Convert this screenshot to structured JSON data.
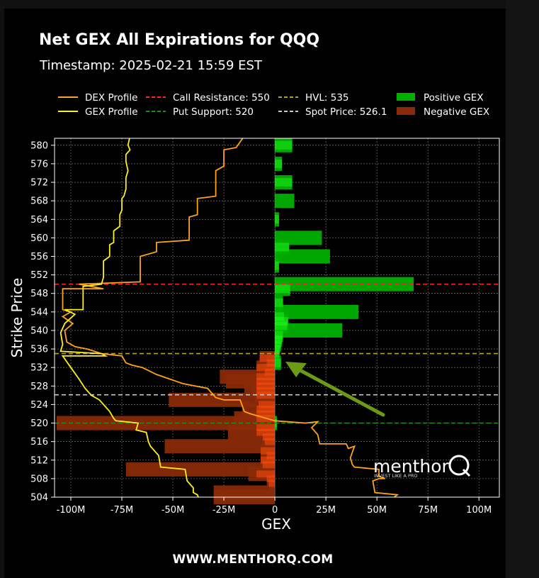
{
  "header": {
    "title": "Net GEX All Expirations for QQQ",
    "subtitle": "Timestamp: 2025-02-21 15:59 EST"
  },
  "footer": {
    "url": "WWW.MENTHORQ.COM"
  },
  "watermark": {
    "brand": "menthor",
    "tagline": "INVEST LIKE A PRO"
  },
  "colors": {
    "background": "#000000",
    "dex": "#ffa31a",
    "gex": "#ffee22",
    "positive": "#00b000",
    "negative": "#8a2a06",
    "call_resistance": "#ff2222",
    "put_support": "#1c8a1c",
    "hvl": "#b8a030",
    "spot": "#c8c8c8",
    "arrow": "#6b9a17"
  },
  "chart_data": {
    "type": "bar",
    "orientation": "horizontal",
    "xlabel": "GEX",
    "ylabel": "Strike Price",
    "xlim": [
      -108000000,
      110000000
    ],
    "ylim": [
      504,
      581.5
    ],
    "xticks": [
      -100000000,
      -75000000,
      -50000000,
      -25000000,
      0,
      25000000,
      50000000,
      75000000,
      100000000
    ],
    "xtick_labels": [
      "-100M",
      "-75M",
      "-50M",
      "-25M",
      "0",
      "25M",
      "50M",
      "75M",
      "100M"
    ],
    "yticks": [
      504,
      508,
      512,
      516,
      520,
      524,
      528,
      532,
      536,
      540,
      544,
      548,
      552,
      556,
      560,
      564,
      568,
      572,
      576,
      580
    ],
    "grid": true,
    "legend": {
      "position": "top",
      "entries": [
        {
          "label": "DEX Profile",
          "style": "line",
          "color": "#ffa31a"
        },
        {
          "label": "GEX Profile",
          "style": "line",
          "color": "#ffee22"
        },
        {
          "label": "Call Resistance: 550",
          "style": "dashed",
          "color": "#ff2222"
        },
        {
          "label": "Put Support: 520",
          "style": "dashed",
          "color": "#1c8a1c"
        },
        {
          "label": "HVL: 535",
          "style": "dashed",
          "color": "#b8a030"
        },
        {
          "label": "Spot Price: 526.1",
          "style": "dashed",
          "color": "#c8c8c8"
        },
        {
          "label": "Positive GEX",
          "style": "patch",
          "color": "#00b000"
        },
        {
          "label": "Negative GEX",
          "style": "patch",
          "color": "#8a2a06"
        }
      ]
    },
    "levels": {
      "call_resistance": 550,
      "put_support": 520,
      "hvl": 535,
      "spot": 526.1
    },
    "positive_gex": [
      {
        "strike": 580,
        "value": 8500000
      },
      {
        "strike": 576,
        "value": 3500000
      },
      {
        "strike": 572,
        "value": 8500000
      },
      {
        "strike": 568,
        "value": 9500000
      },
      {
        "strike": 564,
        "value": 2000000
      },
      {
        "strike": 560,
        "value": 23000000
      },
      {
        "strike": 558,
        "value": 7000000
      },
      {
        "strike": 556,
        "value": 27000000
      },
      {
        "strike": 554,
        "value": 2000000
      },
      {
        "strike": 550,
        "value": 68000000
      },
      {
        "strike": 549,
        "value": 7500000
      },
      {
        "strike": 546,
        "value": 4000000
      },
      {
        "strike": 544,
        "value": 41000000
      },
      {
        "strike": 543,
        "value": 4500000
      },
      {
        "strike": 542,
        "value": 6500000
      },
      {
        "strike": 541,
        "value": 6000000
      },
      {
        "strike": 540,
        "value": 33000000
      },
      {
        "strike": 539,
        "value": 4000000
      },
      {
        "strike": 538,
        "value": 3500000
      },
      {
        "strike": 537,
        "value": 3000000
      },
      {
        "strike": 536,
        "value": 2500000
      },
      {
        "strike": 535,
        "value": 2000000
      },
      {
        "strike": 533,
        "value": 3000000
      },
      {
        "strike": 520,
        "value": 1000000
      }
    ],
    "negative_gex": [
      {
        "strike": 534,
        "value": -7500000
      },
      {
        "strike": 533,
        "value": -4000000
      },
      {
        "strike": 532,
        "value": -9000000
      },
      {
        "strike": 531,
        "value": -5000000
      },
      {
        "strike": 530,
        "value": -27000000
      },
      {
        "strike": 529,
        "value": -24000000
      },
      {
        "strike": 528,
        "value": -15000000
      },
      {
        "strike": 527,
        "value": -12000000
      },
      {
        "strike": 526,
        "value": -10000000
      },
      {
        "strike": 525,
        "value": -52000000
      },
      {
        "strike": 524,
        "value": -8000000
      },
      {
        "strike": 523,
        "value": -16000000
      },
      {
        "strike": 522,
        "value": -9000000
      },
      {
        "strike": 521,
        "value": -20000000
      },
      {
        "strike": 520,
        "value": -107000000
      },
      {
        "strike": 519,
        "value": -9000000
      },
      {
        "strike": 518,
        "value": -23000000
      },
      {
        "strike": 517,
        "value": -6000000
      },
      {
        "strike": 516,
        "value": -5000000
      },
      {
        "strike": 515,
        "value": -54000000
      },
      {
        "strike": 514,
        "value": -7000000
      },
      {
        "strike": 513,
        "value": -4000000
      },
      {
        "strike": 512,
        "value": -7000000
      },
      {
        "strike": 511,
        "value": -6000000
      },
      {
        "strike": 510,
        "value": -73000000
      },
      {
        "strike": 509,
        "value": -13000000
      },
      {
        "strike": 508,
        "value": -4000000
      },
      {
        "strike": 507,
        "value": -3000000
      },
      {
        "strike": 505,
        "value": -30000000
      },
      {
        "strike": 504,
        "value": -30000000
      }
    ],
    "dex_profile": [
      [
        -15000000,
        582
      ],
      [
        -19000000,
        579.5
      ],
      [
        -25000000,
        579
      ],
      [
        -25000000,
        575.5
      ],
      [
        -29000000,
        574.5
      ],
      [
        -29000000,
        569
      ],
      [
        -38000000,
        568.5
      ],
      [
        -38000000,
        565
      ],
      [
        -42000000,
        564.5
      ],
      [
        -42000000,
        559.5
      ],
      [
        -58000000,
        559
      ],
      [
        -58000000,
        557
      ],
      [
        -66000000,
        556
      ],
      [
        -66000000,
        550.5
      ],
      [
        -96000000,
        550
      ],
      [
        -84000000,
        549
      ],
      [
        -104000000,
        549
      ],
      [
        -104000000,
        544.5
      ],
      [
        -100000000,
        544
      ],
      [
        -104000000,
        543
      ],
      [
        -99000000,
        541.5
      ],
      [
        -103000000,
        540
      ],
      [
        -102000000,
        537.5
      ],
      [
        -98000000,
        536.5
      ],
      [
        -92000000,
        536
      ],
      [
        -85000000,
        535
      ],
      [
        -75000000,
        534.5
      ],
      [
        -73000000,
        533
      ],
      [
        -70000000,
        532.5
      ],
      [
        -65000000,
        532
      ],
      [
        -58000000,
        530.5
      ],
      [
        -45000000,
        528.5
      ],
      [
        -33000000,
        527.5
      ],
      [
        -29000000,
        525.5
      ],
      [
        -25000000,
        525
      ],
      [
        -17000000,
        525
      ],
      [
        -15000000,
        522.5
      ],
      [
        -12000000,
        522
      ],
      [
        0,
        520.5
      ],
      [
        15000000,
        520
      ],
      [
        21000000,
        520.3
      ],
      [
        18000000,
        519
      ],
      [
        21000000,
        517.5
      ],
      [
        22000000,
        515.5
      ],
      [
        35000000,
        515.5
      ],
      [
        36000000,
        514.5
      ],
      [
        39000000,
        515
      ],
      [
        37000000,
        512.5
      ],
      [
        38000000,
        511
      ],
      [
        39000000,
        510.5
      ],
      [
        51000000,
        510
      ],
      [
        51000000,
        508.5
      ],
      [
        54000000,
        508
      ],
      [
        51000000,
        508
      ],
      [
        48000000,
        507.5
      ],
      [
        49000000,
        505
      ],
      [
        60000000,
        504.5
      ],
      [
        57000000,
        503.5
      ]
    ],
    "gex_profile": [
      [
        -71000000,
        582
      ],
      [
        -72000000,
        580
      ],
      [
        -71000000,
        579
      ],
      [
        -73000000,
        578
      ],
      [
        -73000000,
        576.5
      ],
      [
        -72000000,
        574.5
      ],
      [
        -73000000,
        573
      ],
      [
        -73000000,
        570.5
      ],
      [
        -74000000,
        569
      ],
      [
        -75000000,
        568.5
      ],
      [
        -75000000,
        566
      ],
      [
        -76000000,
        565
      ],
      [
        -76000000,
        562.5
      ],
      [
        -79000000,
        561.5
      ],
      [
        -79000000,
        559
      ],
      [
        -81000000,
        558.5
      ],
      [
        -81000000,
        556
      ],
      [
        -84000000,
        555
      ],
      [
        -84000000,
        551.5
      ],
      [
        -85000000,
        550
      ],
      [
        -94000000,
        549.5
      ],
      [
        -94000000,
        549
      ],
      [
        -94000000,
        544.5
      ],
      [
        -103000000,
        544.5
      ],
      [
        -98000000,
        543.5
      ],
      [
        -103000000,
        541.5
      ],
      [
        -105000000,
        539.5
      ],
      [
        -104000000,
        537
      ],
      [
        -105000000,
        535.5
      ],
      [
        -85000000,
        535
      ],
      [
        -83000000,
        534.5
      ],
      [
        -104000000,
        534.5
      ],
      [
        -100000000,
        532
      ],
      [
        -96000000,
        529.5
      ],
      [
        -93000000,
        527.5
      ],
      [
        -90000000,
        526
      ],
      [
        -86000000,
        525
      ],
      [
        -84000000,
        524
      ],
      [
        -81000000,
        522.5
      ],
      [
        -79000000,
        521
      ],
      [
        -78000000,
        520.5
      ],
      [
        -67000000,
        520
      ],
      [
        -68000000,
        518.5
      ],
      [
        -63000000,
        518
      ],
      [
        -62000000,
        516
      ],
      [
        -61000000,
        515
      ],
      [
        -57000000,
        513
      ],
      [
        -56000000,
        510.5
      ],
      [
        -44000000,
        510
      ],
      [
        -43000000,
        507.5
      ],
      [
        -40000000,
        506
      ],
      [
        -40000000,
        505
      ],
      [
        -38000000,
        504.5
      ],
      [
        -37000000,
        503.5
      ]
    ]
  }
}
